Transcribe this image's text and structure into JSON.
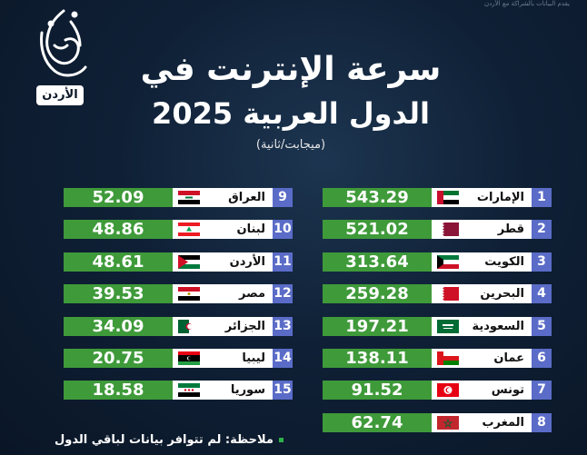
{
  "brand": {
    "top_note": "يقدم البيانات بالشراكة مع الأردن",
    "badge": "الأردن"
  },
  "title": {
    "line1": "سرعة الإنترنت في",
    "line2": "الدول العربية 2025",
    "unit": "(ميجابت/ثانية)"
  },
  "rows_right": [
    {
      "rank": "1",
      "country": "الإمارات",
      "value": "543.29",
      "flag": "uae"
    },
    {
      "rank": "2",
      "country": "قطر",
      "value": "521.02",
      "flag": "qatar"
    },
    {
      "rank": "3",
      "country": "الكويت",
      "value": "313.64",
      "flag": "kuwait"
    },
    {
      "rank": "4",
      "country": "البحرين",
      "value": "259.28",
      "flag": "bahrain"
    },
    {
      "rank": "5",
      "country": "السعودية",
      "value": "197.21",
      "flag": "saudi"
    },
    {
      "rank": "6",
      "country": "عمان",
      "value": "138.11",
      "flag": "oman"
    },
    {
      "rank": "7",
      "country": "تونس",
      "value": "91.52",
      "flag": "tunisia"
    },
    {
      "rank": "8",
      "country": "المغرب",
      "value": "62.74",
      "flag": "morocco"
    }
  ],
  "rows_left": [
    {
      "rank": "9",
      "country": "العراق",
      "value": "52.09",
      "flag": "iraq"
    },
    {
      "rank": "10",
      "country": "لبنان",
      "value": "48.86",
      "flag": "lebanon"
    },
    {
      "rank": "11",
      "country": "الأردن",
      "value": "48.61",
      "flag": "jordan"
    },
    {
      "rank": "12",
      "country": "مصر",
      "value": "39.53",
      "flag": "egypt"
    },
    {
      "rank": "13",
      "country": "الجزائر",
      "value": "34.09",
      "flag": "algeria"
    },
    {
      "rank": "14",
      "country": "ليبيا",
      "value": "20.75",
      "flag": "libya"
    },
    {
      "rank": "15",
      "country": "سوريا",
      "value": "18.58",
      "flag": "syria"
    }
  ],
  "note": "ملاحظة: لم تتوافر بيانات لباقي الدول",
  "colors": {
    "value_bg": "#3f9a3a",
    "rank_bg": "#5a6cc7",
    "name_bg": "#ffffff"
  }
}
